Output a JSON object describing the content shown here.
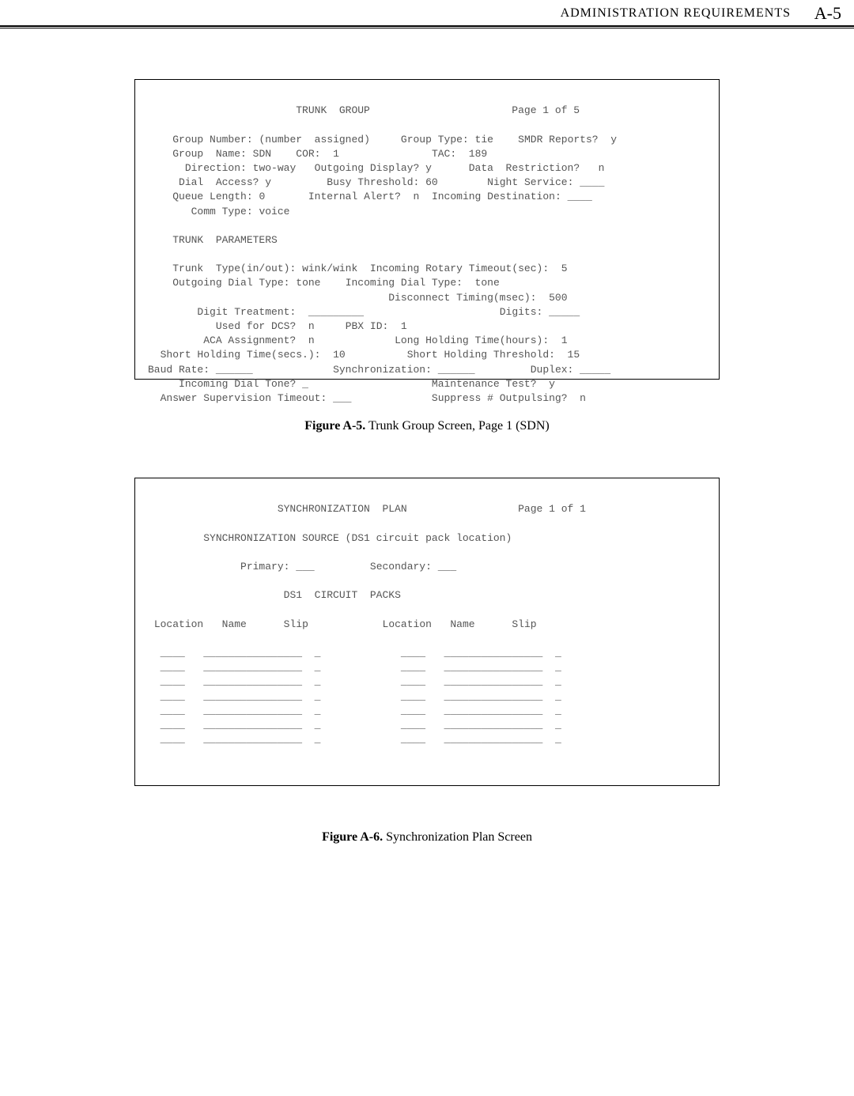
{
  "header": {
    "title": "ADMINISTRATION REQUIREMENTS",
    "page": "A-5"
  },
  "screen1": {
    "title": "TRUNK  GROUP",
    "page": "Page 1 of 5",
    "group_number_label": "Group Number:",
    "group_number_value": "(number  assigned)",
    "group_type_label": "Group Type:",
    "group_type_value": "tie",
    "smdr_label": "SMDR Reports?",
    "smdr_value": "y",
    "group_name_label": "Group  Name:",
    "group_name_value": "SDN",
    "cor_label": "COR:",
    "cor_value": "1",
    "tac_label": "TAC:",
    "tac_value": "189",
    "direction_label": "Direction:",
    "direction_value": "two-way",
    "outgoing_display_label": "Outgoing Display?",
    "outgoing_display_value": "y",
    "data_restriction_label": "Data  Restriction?",
    "data_restriction_value": "n",
    "dial_access_label": "Dial  Access?",
    "dial_access_value": "y",
    "busy_threshold_label": "Busy Threshold:",
    "busy_threshold_value": "60",
    "night_service_label": "Night Service:",
    "night_service_value": "____",
    "queue_length_label": "Queue Length:",
    "queue_length_value": "0",
    "internal_alert_label": "Internal Alert?",
    "internal_alert_value": "n",
    "incoming_dest_label": "Incoming Destination:",
    "incoming_dest_value": "____",
    "comm_type_label": "Comm Type:",
    "comm_type_value": "voice",
    "trunk_params_label": "TRUNK  PARAMETERS",
    "trunk_type_label": "Trunk  Type(in/out):",
    "trunk_type_value": "wink/wink",
    "inc_rotary_label": "Incoming Rotary Timeout(sec):",
    "inc_rotary_value": "5",
    "out_dial_type_label": "Outgoing Dial Type:",
    "out_dial_type_value": "tone",
    "inc_dial_type_label": "Incoming Dial Type:",
    "inc_dial_type_value": "tone",
    "disc_timing_label": "Disconnect Timing(msec):",
    "disc_timing_value": "500",
    "digits_label": "Digits:",
    "digits_value": "_____",
    "digit_treatment_label": "Digit Treatment:",
    "digit_treatment_value": "_________",
    "used_dcs_label": "Used for DCS?",
    "used_dcs_value": "n",
    "pbx_id_label": "PBX ID:",
    "pbx_id_value": "1",
    "aca_label": "ACA Assignment?",
    "aca_value": "n",
    "long_hold_label": "Long Holding Time(hours):",
    "long_hold_value": "1",
    "short_hold_time_label": "Short Holding Time(secs.):",
    "short_hold_time_value": "10",
    "short_hold_thresh_label": "Short Holding Threshold:",
    "short_hold_thresh_value": "15",
    "baud_label": "Baud Rate:",
    "baud_value": "______",
    "sync_label": "Synchronization:",
    "sync_value": "______",
    "duplex_label": "Duplex:",
    "duplex_value": "_____",
    "inc_tone_label": "Incoming Dial Tone?",
    "inc_tone_value": "_",
    "maint_label": "Maintenance Test?",
    "maint_value": "y",
    "ans_sup_label": "Answer Supervision Timeout:",
    "ans_sup_value": "___",
    "suppress_label": "Suppress # Outpulsing?",
    "suppress_value": "n"
  },
  "caption1": {
    "bold": "Figure A-5.",
    "text": " Trunk Group Screen, Page 1 (SDN)"
  },
  "screen2": {
    "title": "SYNCHRONIZATION  PLAN",
    "page": "Page 1 of 1",
    "source_line": "SYNCHRONIZATION SOURCE (DS1 circuit pack location)",
    "primary_label": "Primary:",
    "primary_value": "___",
    "secondary_label": "Secondary:",
    "secondary_value": "___",
    "packs_label": "DS1  CIRCUIT  PACKS",
    "col_location": "Location",
    "col_name": "Name",
    "col_slip": "Slip",
    "row_loc": "____",
    "row_name": "________________",
    "row_slip": "_"
  },
  "caption2": {
    "bold": "Figure A-6.",
    "text": " Synchronization Plan Screen"
  }
}
